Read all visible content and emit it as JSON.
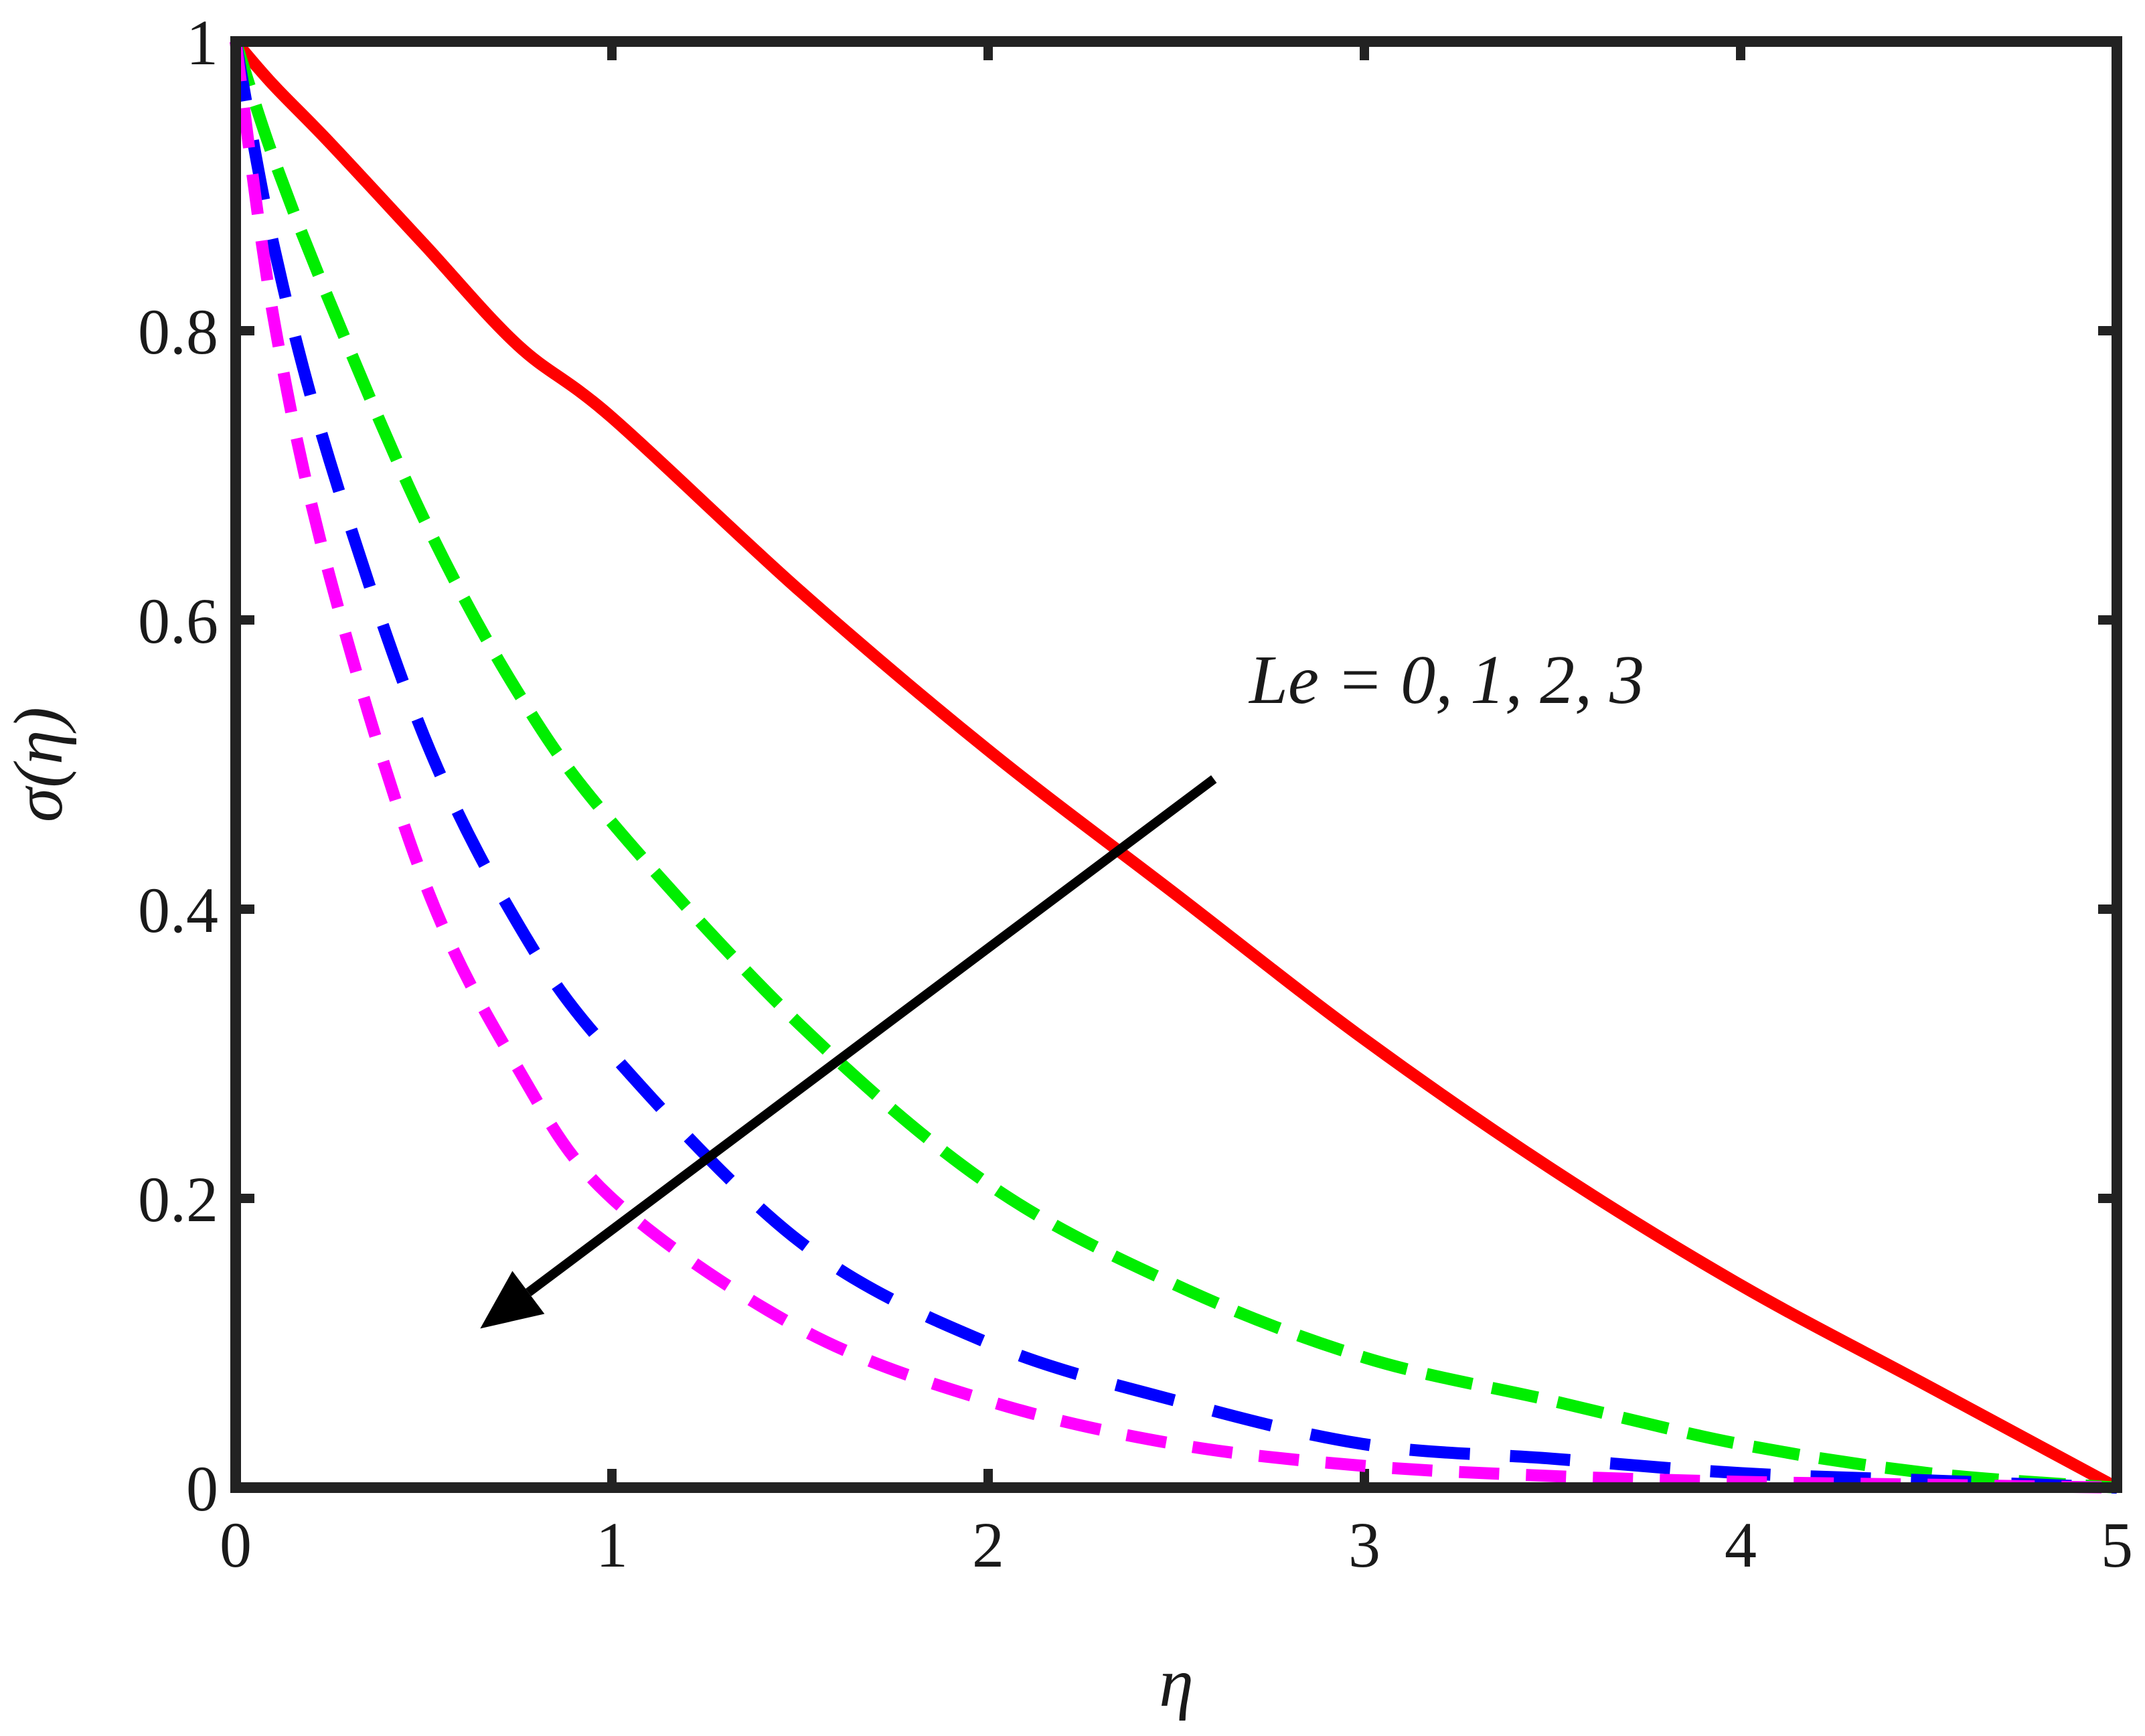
{
  "chart_data": {
    "type": "line",
    "title": "",
    "xlabel": "η",
    "ylabel": "σ(η)",
    "xlim": [
      0,
      5
    ],
    "ylim": [
      0,
      1
    ],
    "xticks": [
      "0",
      "1",
      "2",
      "3",
      "4",
      "5"
    ],
    "yticks": [
      "0",
      "0.2",
      "0.4",
      "0.6",
      "0.8",
      "1"
    ],
    "grid": false,
    "legend": "none",
    "annotation": {
      "text": "Le = 0, 1, 2, 3",
      "arrow_from": [
        2.6,
        0.49
      ],
      "arrow_to": [
        0.65,
        0.11
      ]
    },
    "x": [
      0,
      0.1,
      0.25,
      0.5,
      0.75,
      1,
      1.5,
      2,
      2.5,
      3,
      3.5,
      4,
      4.5,
      5
    ],
    "series": [
      {
        "color": "#ff0000",
        "style": "solid",
        "values": [
          1.0,
          0.97,
          0.93,
          0.86,
          0.79,
          0.74,
          0.62,
          0.51,
          0.41,
          0.31,
          0.22,
          0.14,
          0.07,
          0.0
        ]
      },
      {
        "color": "#00ee00",
        "style": "dashed",
        "values": [
          1.0,
          0.92,
          0.82,
          0.67,
          0.55,
          0.46,
          0.32,
          0.21,
          0.14,
          0.09,
          0.06,
          0.03,
          0.01,
          0.0
        ]
      },
      {
        "color": "#0000ff",
        "style": "dashed",
        "values": [
          1.0,
          0.86,
          0.71,
          0.52,
          0.39,
          0.3,
          0.17,
          0.1,
          0.06,
          0.03,
          0.02,
          0.01,
          0.005,
          0.0
        ]
      },
      {
        "color": "#ff00ff",
        "style": "dashed",
        "values": [
          1.0,
          0.81,
          0.63,
          0.42,
          0.29,
          0.2,
          0.11,
          0.06,
          0.03,
          0.015,
          0.008,
          0.004,
          0.002,
          0.0
        ]
      }
    ]
  }
}
